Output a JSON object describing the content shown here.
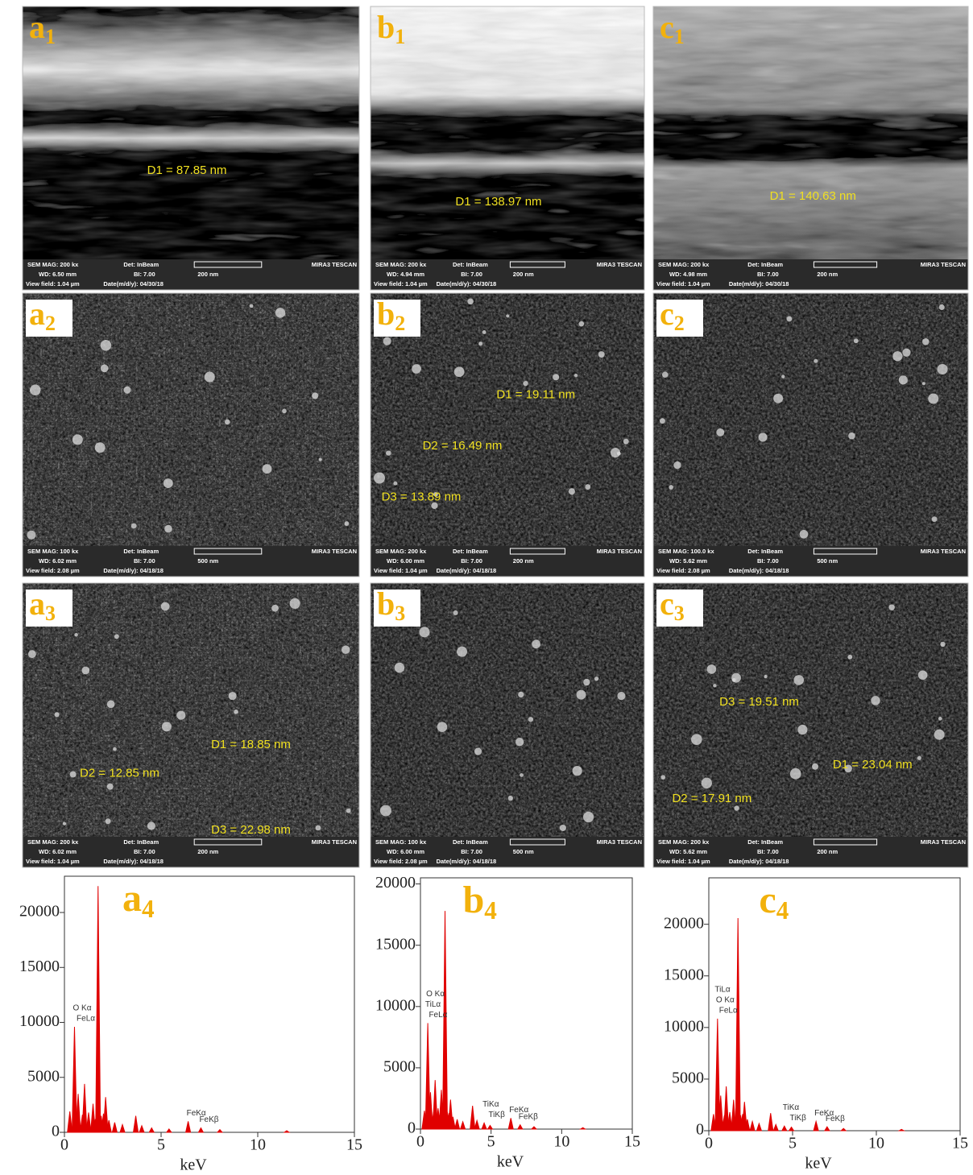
{
  "sem_panels": [
    {
      "label": {
        "letter": "a",
        "index": "1"
      },
      "measurements": [
        "D1 = 87.85 nm"
      ],
      "info": {
        "mag": "SEM MAG: 200 kx",
        "det": "Det: InBeam",
        "wd": "WD: 6.50 mm",
        "bi": "BI: 7.00",
        "view_field": "View field: 1.04 µm",
        "date": "Date(m/d/y): 04/30/18",
        "scale": "200 nm"
      },
      "brand": "MIRA3 TESCAN"
    },
    {
      "label": {
        "letter": "b",
        "index": "1"
      },
      "measurements": [
        "D1 = 138.97 nm"
      ],
      "info": {
        "mag": "SEM MAG: 200 kx",
        "det": "Det: InBeam",
        "wd": "WD: 4.94 mm",
        "bi": "BI: 7.00",
        "view_field": "View field: 1.04 µm",
        "date": "Date(m/d/y): 04/30/18",
        "scale": "200 nm"
      },
      "brand": "MIRA3 TESCAN"
    },
    {
      "label": {
        "letter": "c",
        "index": "1"
      },
      "measurements": [
        "D1 = 140.63 nm"
      ],
      "info": {
        "mag": "SEM MAG: 200 kx",
        "det": "Det: InBeam",
        "wd": "WD: 4.98 mm",
        "bi": "BI: 7.00",
        "view_field": "View field: 1.04 µm",
        "date": "Date(m/d/y): 04/30/18",
        "scale": "200 nm"
      },
      "brand": "MIRA3 TESCAN"
    },
    {
      "label": {
        "letter": "a",
        "index": "2"
      },
      "measurements": [],
      "info": {
        "mag": "SEM MAG: 100 kx",
        "det": "Det: InBeam",
        "wd": "WD: 6.02 mm",
        "bi": "BI: 7.00",
        "view_field": "View field: 2.08 µm",
        "date": "Date(m/d/y): 04/18/18",
        "scale": "500 nm"
      },
      "brand": "MIRA3 TESCAN"
    },
    {
      "label": {
        "letter": "b",
        "index": "2"
      },
      "measurements": [
        "D1 = 19.11 nm",
        "D2 = 16.49 nm",
        "D3 = 13.89 nm"
      ],
      "info": {
        "mag": "SEM MAG: 200 kx",
        "det": "Det: InBeam",
        "wd": "WD: 6.00 mm",
        "bi": "BI: 7.00",
        "view_field": "View field: 1.04 µm",
        "date": "Date(m/d/y): 04/18/18",
        "scale": "200 nm"
      },
      "brand": "MIRA3 TESCAN"
    },
    {
      "label": {
        "letter": "c",
        "index": "2"
      },
      "measurements": [],
      "info": {
        "mag": "SEM MAG: 100.0 kx",
        "det": "Det: InBeam",
        "wd": "WD: 5.62 mm",
        "bi": "BI: 7.00",
        "view_field": "View field: 2.08 µm",
        "date": "Date(m/d/y): 04/18/18",
        "scale": "500 nm"
      },
      "brand": "MIRA3 TESCAN"
    },
    {
      "label": {
        "letter": "a",
        "index": "3"
      },
      "measurements": [
        "D1 = 18.85 nm",
        "D2 = 12.85 nm",
        "D3 = 22.98 nm"
      ],
      "info": {
        "mag": "SEM MAG: 200 kx",
        "det": "Det: InBeam",
        "wd": "WD: 6.02 mm",
        "bi": "BI: 7.00",
        "view_field": "View field: 1.04 µm",
        "date": "Date(m/d/y): 04/18/18",
        "scale": "200 nm"
      },
      "brand": "MIRA3 TESCAN"
    },
    {
      "label": {
        "letter": "b",
        "index": "3"
      },
      "measurements": [],
      "info": {
        "mag": "SEM MAG: 100 kx",
        "det": "Det: InBeam",
        "wd": "WD: 6.00 mm",
        "bi": "BI: 7.00",
        "view_field": "View field: 2.08 µm",
        "date": "Date(m/d/y): 04/18/18",
        "scale": "500 nm"
      },
      "brand": "MIRA3 TESCAN"
    },
    {
      "label": {
        "letter": "c",
        "index": "3"
      },
      "measurements": [
        "D3 = 19.51 nm",
        "D1 = 23.04 nm",
        "D2 = 17.91 nm"
      ],
      "info": {
        "mag": "SEM MAG: 200 kx",
        "det": "Det: InBeam",
        "wd": "WD: 5.62 mm",
        "bi": "BI: 7.00",
        "view_field": "View field: 1.04 µm",
        "date": "Date(m/d/y): 04/18/18",
        "scale": "200 nm"
      },
      "brand": "MIRA3 TESCAN"
    }
  ],
  "chart_data": [
    {
      "type": "spectrum",
      "label": {
        "letter": "a",
        "index": "4"
      },
      "x_label": "keV",
      "color": "#e00000",
      "x": [
        0.28,
        0.52,
        0.71,
        0.93,
        1.04,
        1.25,
        1.48,
        1.6,
        1.74,
        1.9,
        2.02,
        2.13,
        2.3,
        2.6,
        3.0,
        3.69,
        4.0,
        4.51,
        5.41,
        6.4,
        7.06,
        8.04,
        11.5
      ],
      "values": [
        1900,
        9600,
        3500,
        1600,
        4400,
        1800,
        2600,
        1200,
        22400,
        1500,
        1700,
        3200,
        1100,
        900,
        700,
        1500,
        600,
        400,
        300,
        1000,
        400,
        250,
        150
      ],
      "annotations": [
        {
          "text": "FeLα",
          "x": 0.71
        },
        {
          "text": "O Kα",
          "x": 0.52
        },
        {
          "text": "FeKβ",
          "x": 7.06
        },
        {
          "text": "FeKα",
          "x": 6.4
        }
      ],
      "xlim": [
        0,
        15
      ],
      "xticks": [
        0,
        5,
        10,
        15
      ],
      "ylim": [
        0,
        23300
      ],
      "yticks": [
        0,
        5000,
        10000,
        15000,
        20000
      ]
    },
    {
      "type": "spectrum",
      "label": {
        "letter": "b",
        "index": "4"
      },
      "x_label": "keV",
      "color": "#e00000",
      "x": [
        0.28,
        0.52,
        0.71,
        0.93,
        1.04,
        1.25,
        1.48,
        1.6,
        1.74,
        1.9,
        2.02,
        2.13,
        2.3,
        2.6,
        3.0,
        3.69,
        4.0,
        4.51,
        4.93,
        6.4,
        7.06,
        8.04,
        11.5
      ],
      "values": [
        1500,
        8650,
        3000,
        1400,
        4000,
        1700,
        3200,
        1100,
        17800,
        1400,
        1300,
        2400,
        1000,
        800,
        600,
        1900,
        700,
        500,
        300,
        900,
        350,
        200,
        120
      ],
      "annotations": [
        {
          "text": "FeLα",
          "x": 0.71
        },
        {
          "text": "TiLα",
          "x": 0.45
        },
        {
          "text": "O Kα",
          "x": 0.52
        },
        {
          "text": "TiKβ",
          "x": 4.93
        },
        {
          "text": "TiKα",
          "x": 4.51
        },
        {
          "text": "FeKβ",
          "x": 7.06
        },
        {
          "text": "FeKα",
          "x": 6.4
        }
      ],
      "xlim": [
        0,
        15
      ],
      "xticks": [
        0,
        5,
        10,
        15
      ],
      "ylim": [
        0,
        20500
      ],
      "yticks": [
        0,
        5000,
        10000,
        15000,
        20000
      ]
    },
    {
      "type": "spectrum",
      "label": {
        "letter": "c",
        "index": "4"
      },
      "x_label": "keV",
      "color": "#e00000",
      "x": [
        0.28,
        0.52,
        0.71,
        0.93,
        1.04,
        1.25,
        1.48,
        1.6,
        1.74,
        1.9,
        2.02,
        2.13,
        2.3,
        2.6,
        3.0,
        3.69,
        4.0,
        4.51,
        4.93,
        6.4,
        7.06,
        8.04,
        11.5
      ],
      "values": [
        1600,
        10850,
        3400,
        1500,
        4300,
        1800,
        3000,
        1200,
        20600,
        1500,
        1600,
        2800,
        1100,
        900,
        700,
        1700,
        600,
        450,
        350,
        900,
        380,
        220,
        130
      ],
      "annotations": [
        {
          "text": "FeLα",
          "x": 0.71
        },
        {
          "text": "O Kα",
          "x": 0.52
        },
        {
          "text": "TiLα",
          "x": 0.45
        },
        {
          "text": "TiKβ",
          "x": 4.93
        },
        {
          "text": "TiKα",
          "x": 4.51
        },
        {
          "text": "FeKβ",
          "x": 7.06
        },
        {
          "text": "FeKα",
          "x": 6.4
        }
      ],
      "xlim": [
        0,
        15
      ],
      "xticks": [
        0,
        5,
        10,
        15
      ],
      "ylim": [
        0,
        24500
      ],
      "yticks": [
        0,
        5000,
        10000,
        15000,
        20000
      ]
    }
  ]
}
